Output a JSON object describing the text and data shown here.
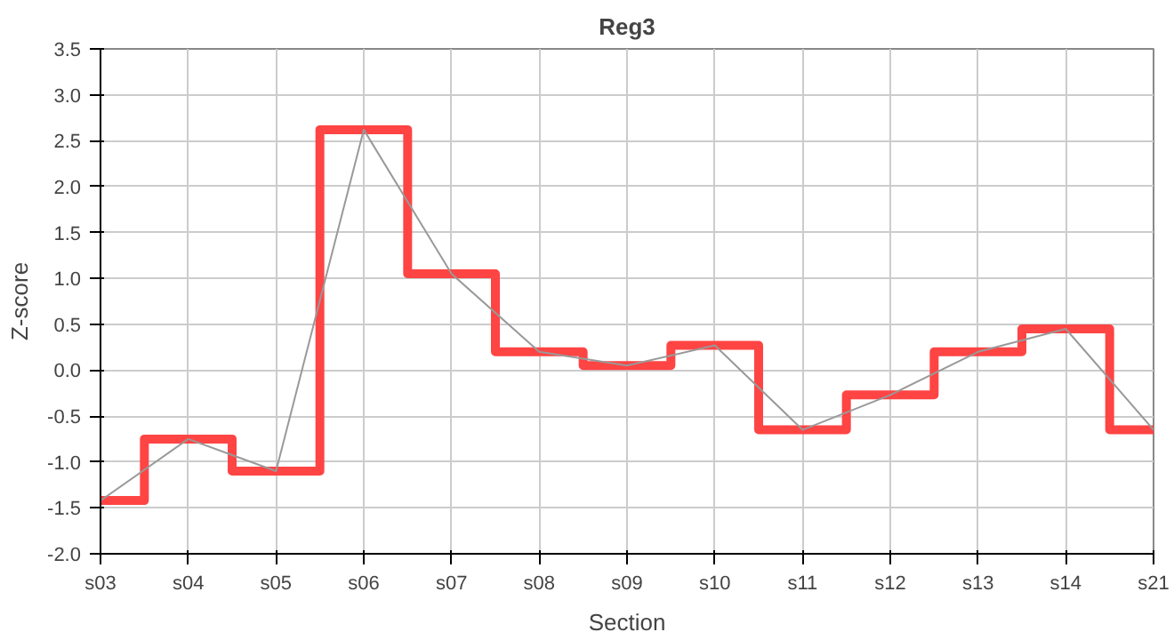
{
  "chart_data": {
    "type": "step",
    "title": "Reg3",
    "xlabel": "Section",
    "ylabel": "Z-score",
    "categories": [
      "s03",
      "s04",
      "s05",
      "s06",
      "s07",
      "s08",
      "s09",
      "s10",
      "s11",
      "s12",
      "s13",
      "s14",
      "s21"
    ],
    "series": [
      {
        "color": "#ff4444",
        "values": [
          -1.42,
          -0.75,
          -1.1,
          2.62,
          1.05,
          0.2,
          0.05,
          0.27,
          -0.65,
          -0.27,
          0.2,
          0.45,
          -0.65
        ]
      },
      {
        "type": "line",
        "color": "#999999",
        "values": [
          -1.42,
          -0.75,
          -1.1,
          2.62,
          1.05,
          0.2,
          0.05,
          0.27,
          -0.65,
          -0.27,
          0.2,
          0.45,
          -0.65
        ]
      }
    ],
    "ylim": [
      -2.0,
      3.5
    ],
    "yticks": [
      {
        "value": -2.0,
        "label": "-2.0"
      },
      {
        "value": -1.5,
        "label": "-1.5"
      },
      {
        "value": -1.0,
        "label": "-1.0"
      },
      {
        "value": -0.5,
        "label": "-0.5"
      },
      {
        "value": 0.0,
        "label": "0.0"
      },
      {
        "value": 0.5,
        "label": "0.5"
      },
      {
        "value": 1.0,
        "label": "1.0"
      },
      {
        "value": 1.5,
        "label": "1.5"
      },
      {
        "value": 2.0,
        "label": "2.0"
      },
      {
        "value": 2.5,
        "label": "2.5"
      },
      {
        "value": 3.0,
        "label": "3.0"
      },
      {
        "value": 3.5,
        "label": "3.5"
      }
    ],
    "grid": true
  }
}
